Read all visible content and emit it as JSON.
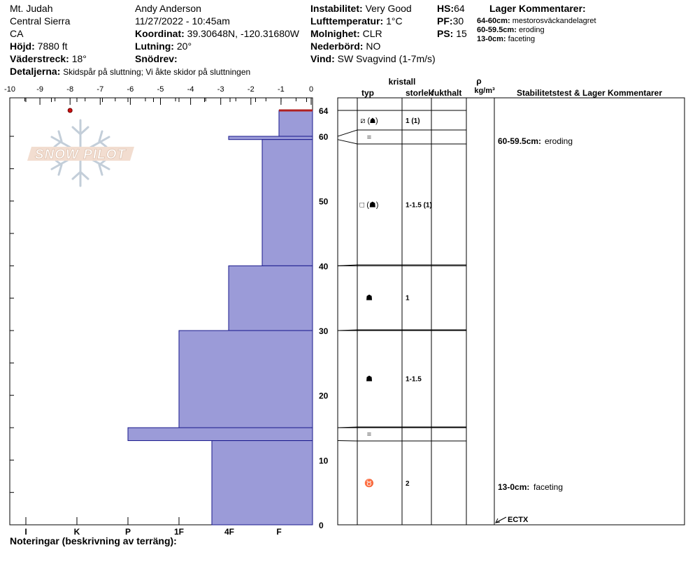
{
  "header": {
    "location": "Mt. Judah",
    "range": "Central Sierra",
    "state": "CA",
    "elevation_label": "Höjd:",
    "elevation_value": "7880 ft",
    "aspect_label": "Väderstreck:",
    "aspect_value": "18°",
    "observer": "Andy Anderson",
    "datetime": "11/27/2022 - 10:45am",
    "coord_label": "Koordinat:",
    "coord_value": "39.30648N, -120.31680W",
    "slope_label": "Lutning:",
    "slope_value": "20°",
    "drift_label": "Snödrev:",
    "stability_label": "Instabilitet:",
    "stability_value": "Very Good",
    "airtemp_label": "Lufttemperatur:",
    "airtemp_value": "1°C",
    "sky_label": "Molnighet:",
    "sky_value": "CLR",
    "precip_label": "Nederbörd:",
    "precip_value": "NO",
    "wind_label": "Vind:",
    "wind_value": "SW  Svagvind (1-7m/s)",
    "hs_label": "HS:",
    "hs_value": "64",
    "pf_label": "PF:",
    "pf_value": "30",
    "ps_label": "PS:",
    "ps_value": "15",
    "layer_comments_title": "Lager Kommentarer:",
    "layer_comments": [
      {
        "range": "64-60cm:",
        "text": "mestorosväckandelagret"
      },
      {
        "range": "60-59.5cm:",
        "text": "eroding"
      },
      {
        "range": "13-0cm:",
        "text": "faceting"
      }
    ],
    "details_label": "Detaljerna:",
    "details_text": "Skidspår på sluttning;  Vi åkte skidor på sluttningen"
  },
  "logo_text": "SNOW PILOT",
  "chart_data": {
    "type": "area",
    "title": "",
    "top_axis_ticks": [
      "-10",
      "-9",
      "-8",
      "-7",
      "-6",
      "-5",
      "-4",
      "-3",
      "-2",
      "-1",
      "0"
    ],
    "top_axis_range": [
      -10,
      0
    ],
    "bottom_axis_ticks": [
      "I",
      "K",
      "P",
      "1F",
      "4F",
      "F"
    ],
    "height_ticks": [
      "0",
      "10",
      "20",
      "30",
      "40",
      "50",
      "60",
      "64"
    ],
    "height_range": [
      0,
      64
    ],
    "temperature_points": [
      {
        "height_cm": 64,
        "temp_c": -8
      }
    ],
    "hardness_layers": [
      {
        "top": 64,
        "bottom": 60,
        "hardness": "F"
      },
      {
        "top": 60,
        "bottom": 59.5,
        "hardness": "4F+"
      },
      {
        "top": 59.5,
        "bottom": 40,
        "hardness": "4F-"
      },
      {
        "top": 40,
        "bottom": 30,
        "hardness": "4F+"
      },
      {
        "top": 30,
        "bottom": 15,
        "hardness": "1F"
      },
      {
        "top": 15,
        "bottom": 13,
        "hardness": "P"
      },
      {
        "top": 13,
        "bottom": 0,
        "hardness": "4F"
      }
    ],
    "colors": {
      "fill": "#9b9bd8",
      "stroke": "#1a1a8c",
      "surface": "#b02020",
      "temp": "#d01010"
    }
  },
  "table": {
    "col_kristall": "kristall",
    "col_typ": "typ",
    "col_storlek": "storlek",
    "col_fukthalt": "fukthalt",
    "col_rho": "ρ",
    "col_density": "kg/m³",
    "col_stability": "Stabilitetstest & Lager Kommentarer",
    "rows": [
      {
        "top": 64,
        "bottom": 60,
        "grain": "⧄ (☗)",
        "size": "1 (1)"
      },
      {
        "top": 60,
        "bottom": 59.5,
        "grain": "=",
        "size": ""
      },
      {
        "top": 59.5,
        "bottom": 40,
        "grain": "□ (☗)",
        "size": "1-1.5 (1)"
      },
      {
        "top": 40,
        "bottom": 30,
        "grain": "☗",
        "size": "1"
      },
      {
        "top": 30,
        "bottom": 15,
        "grain": "☗",
        "size": "1-1.5"
      },
      {
        "top": 15,
        "bottom": 13,
        "grain": "=",
        "size": ""
      },
      {
        "top": 13,
        "bottom": 0,
        "grain": "♉",
        "size": "2"
      }
    ],
    "comments": [
      {
        "range": "60-59.5cm:",
        "text": "eroding"
      },
      {
        "range": "13-0cm:",
        "text": "faceting"
      }
    ],
    "test_label": "ECTX"
  },
  "footer": {
    "notes_label": "Noteringar (beskrivning av terräng):"
  }
}
